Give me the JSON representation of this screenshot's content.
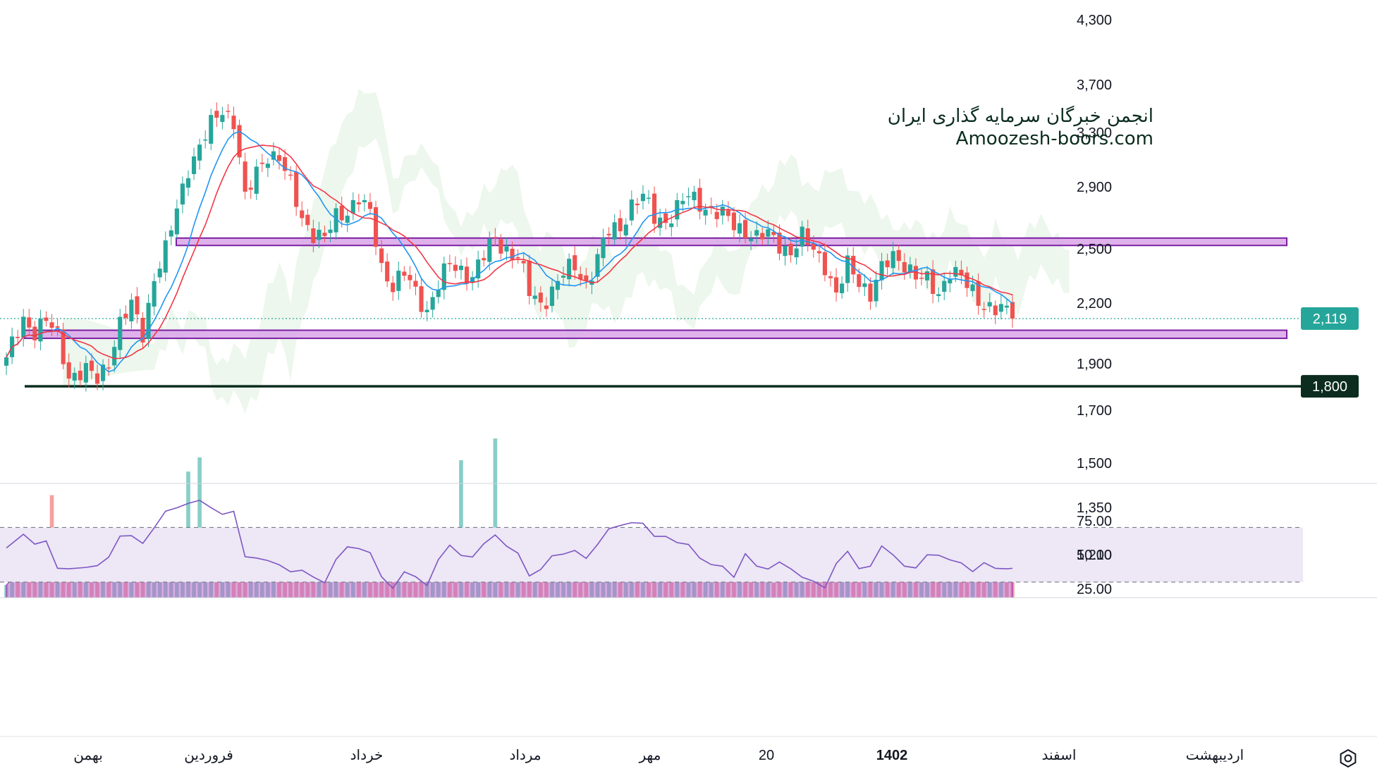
{
  "watermark": {
    "line1": "انجمن خبرگان سرمایه گذاری ایران",
    "line2": "Amoozesh-boors.com"
  },
  "price_axis": {
    "ticks": [
      "4,300",
      "3,700",
      "3,300",
      "2,900",
      "2,500",
      "2,200",
      "1,900",
      "1,700",
      "1,500",
      "1,350",
      "1,210"
    ],
    "last_price_label": "2,119",
    "support_label": "1,800"
  },
  "rsi_axis": {
    "ticks": [
      "75.00",
      "50.00",
      "25.00"
    ]
  },
  "time_axis": {
    "labels": [
      "بهمن",
      "فروردین",
      "خرداد",
      "مرداد",
      "مهر",
      "20",
      "1402",
      "اسفند",
      "اردیبهشت"
    ]
  },
  "colors": {
    "up": "#26a69a",
    "down": "#ef5350",
    "ma_fast": "#2196f3",
    "ma_slow": "#f23645",
    "zone_fill": "#d9a4e8",
    "zone_border": "#7b1fa2",
    "support_line": "#0b2c1e",
    "rsi_line": "#7e57c2",
    "rsi_band": "#ede7f6",
    "volume_ma": "#ba68c8"
  },
  "chart_data": {
    "type": "candlestick",
    "y_scale": "log",
    "ylim": [
      1150,
      4300
    ],
    "last_price": 2119,
    "horizontal_zones": [
      {
        "name": "",
        "low": 2520,
        "high": 2565
      },
      {
        "name": "",
        "low": 2020,
        "high": 2060
      }
    ],
    "horizontal_lines": [
      {
        "value": 1800,
        "label": "1,800"
      }
    ],
    "close_path": [
      [
        0,
        1910
      ],
      [
        3,
        2120
      ],
      [
        5,
        2060
      ],
      [
        7,
        2100
      ],
      [
        9,
        2030
      ],
      [
        11,
        1850
      ],
      [
        14,
        1860
      ],
      [
        16,
        1830
      ],
      [
        18,
        1920
      ],
      [
        20,
        2090
      ],
      [
        22,
        2180
      ],
      [
        24,
        2050
      ],
      [
        26,
        2340
      ],
      [
        28,
        2480
      ],
      [
        30,
        2750
      ],
      [
        32,
        3050
      ],
      [
        34,
        3180
      ],
      [
        36,
        3350
      ],
      [
        38,
        3500
      ],
      [
        40,
        3400
      ],
      [
        42,
        2800
      ],
      [
        44,
        3000
      ],
      [
        46,
        3150
      ],
      [
        48,
        3100
      ],
      [
        50,
        2900
      ],
      [
        52,
        2700
      ],
      [
        54,
        2600
      ],
      [
        56,
        2550
      ],
      [
        58,
        2700
      ],
      [
        60,
        2750
      ],
      [
        62,
        2820
      ],
      [
        64,
        2700
      ],
      [
        66,
        2400
      ],
      [
        68,
        2300
      ],
      [
        70,
        2350
      ],
      [
        72,
        2250
      ],
      [
        74,
        2170
      ],
      [
        76,
        2300
      ],
      [
        78,
        2400
      ],
      [
        80,
        2380
      ],
      [
        82,
        2350
      ],
      [
        84,
        2450
      ],
      [
        86,
        2560
      ],
      [
        88,
        2500
      ],
      [
        90,
        2450
      ],
      [
        92,
        2250
      ],
      [
        94,
        2200
      ],
      [
        96,
        2270
      ],
      [
        98,
        2350
      ],
      [
        100,
        2400
      ],
      [
        102,
        2310
      ],
      [
        104,
        2440
      ],
      [
        106,
        2600
      ],
      [
        108,
        2640
      ],
      [
        110,
        2780
      ],
      [
        112,
        2820
      ],
      [
        114,
        2700
      ],
      [
        116,
        2680
      ],
      [
        118,
        2750
      ],
      [
        120,
        2830
      ],
      [
        122,
        2800
      ],
      [
        124,
        2740
      ],
      [
        126,
        2700
      ],
      [
        128,
        2650
      ],
      [
        130,
        2620
      ],
      [
        132,
        2560
      ],
      [
        134,
        2580
      ],
      [
        136,
        2540
      ],
      [
        138,
        2480
      ],
      [
        140,
        2560
      ],
      [
        142,
        2500
      ],
      [
        144,
        2420
      ],
      [
        146,
        2230
      ],
      [
        148,
        2400
      ],
      [
        150,
        2330
      ],
      [
        152,
        2250
      ],
      [
        154,
        2370
      ],
      [
        156,
        2460
      ],
      [
        158,
        2430
      ],
      [
        160,
        2330
      ],
      [
        162,
        2310
      ],
      [
        164,
        2260
      ],
      [
        166,
        2380
      ],
      [
        168,
        2320
      ],
      [
        170,
        2260
      ],
      [
        172,
        2200
      ],
      [
        174,
        2160
      ],
      [
        176,
        2150
      ],
      [
        177,
        2119
      ]
    ],
    "rsi": {
      "bands": [
        30,
        70
      ],
      "ylim": [
        15,
        95
      ],
      "values": [
        [
          0,
          55
        ],
        [
          3,
          65
        ],
        [
          5,
          60
        ],
        [
          7,
          58
        ],
        [
          9,
          40
        ],
        [
          11,
          42
        ],
        [
          14,
          43
        ],
        [
          16,
          40
        ],
        [
          18,
          48
        ],
        [
          20,
          66
        ],
        [
          22,
          62
        ],
        [
          24,
          58
        ],
        [
          26,
          72
        ],
        [
          28,
          80
        ],
        [
          30,
          84
        ],
        [
          32,
          90
        ],
        [
          34,
          88
        ],
        [
          36,
          84
        ],
        [
          38,
          82
        ],
        [
          40,
          80
        ],
        [
          42,
          48
        ],
        [
          44,
          50
        ],
        [
          46,
          44
        ],
        [
          48,
          42
        ],
        [
          50,
          40
        ],
        [
          52,
          37
        ],
        [
          54,
          33
        ],
        [
          56,
          32
        ],
        [
          58,
          45
        ],
        [
          60,
          55
        ],
        [
          62,
          57
        ],
        [
          64,
          50
        ],
        [
          66,
          33
        ],
        [
          68,
          28
        ],
        [
          70,
          36
        ],
        [
          72,
          33
        ],
        [
          74,
          30
        ],
        [
          76,
          45
        ],
        [
          78,
          56
        ],
        [
          80,
          52
        ],
        [
          82,
          47
        ],
        [
          84,
          57
        ],
        [
          86,
          67
        ],
        [
          88,
          55
        ],
        [
          90,
          50
        ],
        [
          92,
          37
        ],
        [
          94,
          38
        ],
        [
          96,
          48
        ],
        [
          98,
          53
        ],
        [
          100,
          52
        ],
        [
          102,
          46
        ],
        [
          104,
          60
        ],
        [
          106,
          68
        ],
        [
          108,
          70
        ],
        [
          110,
          76
        ],
        [
          112,
          72
        ],
        [
          114,
          62
        ],
        [
          116,
          66
        ],
        [
          118,
          58
        ],
        [
          120,
          56
        ],
        [
          122,
          50
        ],
        [
          124,
          42
        ],
        [
          126,
          40
        ],
        [
          128,
          36
        ],
        [
          130,
          50
        ],
        [
          132,
          40
        ],
        [
          134,
          42
        ],
        [
          136,
          44
        ],
        [
          138,
          38
        ],
        [
          140,
          36
        ],
        [
          142,
          30
        ],
        [
          144,
          24
        ],
        [
          146,
          46
        ],
        [
          148,
          52
        ],
        [
          150,
          38
        ],
        [
          152,
          44
        ],
        [
          154,
          56
        ],
        [
          156,
          48
        ],
        [
          158,
          44
        ],
        [
          160,
          40
        ],
        [
          162,
          48
        ],
        [
          164,
          52
        ],
        [
          166,
          46
        ],
        [
          168,
          42
        ],
        [
          170,
          40
        ],
        [
          172,
          44
        ],
        [
          174,
          38
        ],
        [
          176,
          42
        ],
        [
          177,
          38
        ]
      ]
    },
    "volume_spikes": [
      [
        8,
        1390
      ],
      [
        32,
        1470
      ],
      [
        34,
        1520
      ],
      [
        80,
        1510
      ],
      [
        86,
        1590
      ],
      [
        134,
        1230
      ],
      [
        146,
        1250
      ],
      [
        152,
        1230
      ]
    ]
  }
}
